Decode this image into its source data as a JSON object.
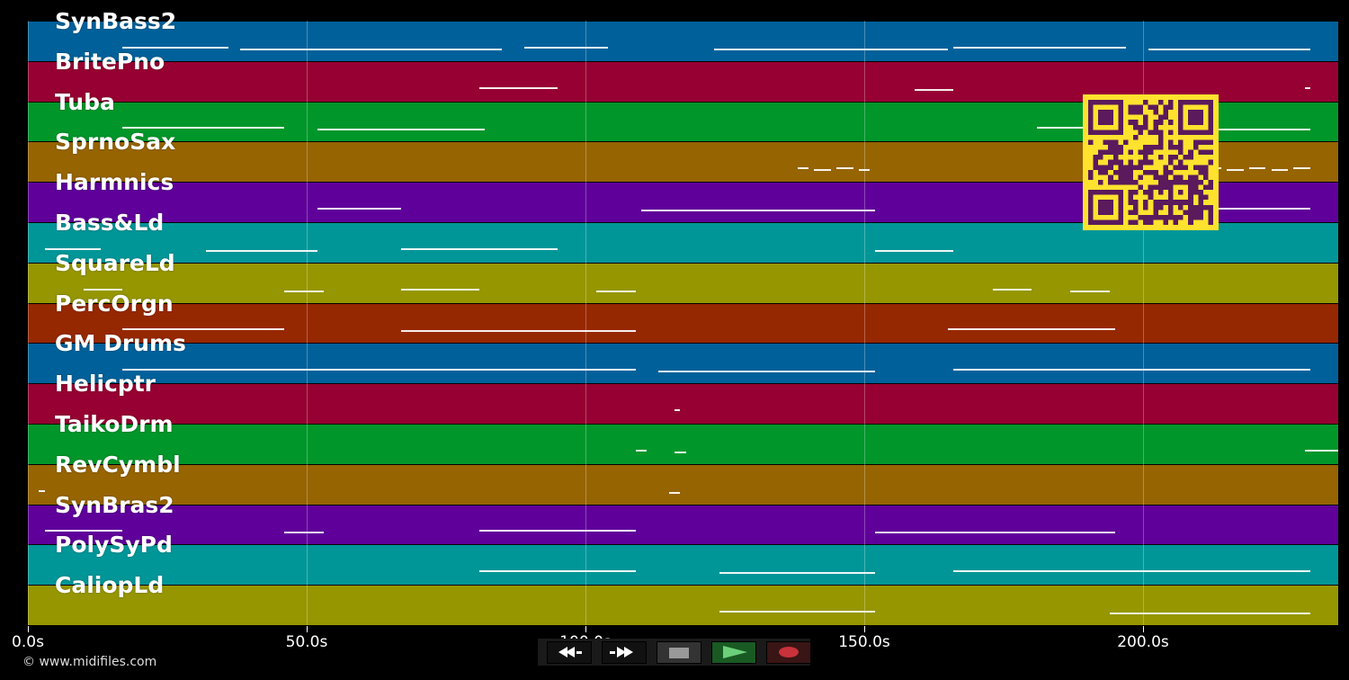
{
  "player": {
    "copyright": "© www.midifiles.com",
    "controls": {
      "rewind_icon": "rewind-icon",
      "fast_forward_icon": "fast-forward-icon",
      "stop_icon": "stop-icon",
      "play_icon": "play-icon",
      "record_icon": "record-icon"
    },
    "timeline": {
      "duration_s": 235,
      "ticks": [
        {
          "value": 0,
          "label": "0.0s"
        },
        {
          "value": 50,
          "label": "50.0s"
        },
        {
          "value": 100,
          "label": "100.0s"
        },
        {
          "value": 150,
          "label": "150.0s"
        },
        {
          "value": 200,
          "label": "200.0s"
        }
      ]
    },
    "tracks": [
      {
        "name": "SynBass2",
        "color": "#00619a",
        "notes": [
          [
            17,
            36
          ],
          [
            38,
            85
          ],
          [
            89,
            104
          ],
          [
            123,
            165
          ],
          [
            166,
            197
          ],
          [
            201,
            230
          ]
        ]
      },
      {
        "name": "BritePno",
        "color": "#960032",
        "notes": [
          [
            81,
            95
          ],
          [
            159,
            166
          ],
          [
            229,
            230
          ]
        ]
      },
      {
        "name": "Tuba",
        "color": "#00962a",
        "notes": [
          [
            17,
            46
          ],
          [
            52,
            82
          ],
          [
            181,
            191
          ],
          [
            191,
            230
          ]
        ]
      },
      {
        "name": "SprnoSax",
        "color": "#966400",
        "notes": [
          [
            138,
            140
          ],
          [
            141,
            144
          ],
          [
            145,
            148
          ],
          [
            149,
            151
          ],
          [
            211,
            214
          ],
          [
            215,
            218
          ],
          [
            219,
            222
          ],
          [
            223,
            226
          ],
          [
            227,
            230
          ]
        ]
      },
      {
        "name": "Harmnics",
        "color": "#5f009a",
        "notes": [
          [
            52,
            67
          ],
          [
            110,
            152
          ],
          [
            209,
            230
          ]
        ]
      },
      {
        "name": "Bass&Ld",
        "color": "#009698",
        "notes": [
          [
            3,
            13
          ],
          [
            32,
            52
          ],
          [
            67,
            95
          ],
          [
            152,
            166
          ]
        ]
      },
      {
        "name": "SquareLd",
        "color": "#969600",
        "notes": [
          [
            10,
            17
          ],
          [
            46,
            53
          ],
          [
            67,
            81
          ],
          [
            102,
            109
          ],
          [
            173,
            180
          ],
          [
            187,
            194
          ]
        ]
      },
      {
        "name": "PercOrgn",
        "color": "#962800",
        "notes": [
          [
            17,
            46
          ],
          [
            67,
            109
          ],
          [
            165,
            195
          ]
        ]
      },
      {
        "name": "GM Drums",
        "color": "#00619a",
        "notes": [
          [
            17,
            109
          ],
          [
            113,
            152
          ],
          [
            166,
            230
          ]
        ]
      },
      {
        "name": "Helicptr",
        "color": "#960032",
        "notes": [
          [
            116,
            117
          ]
        ]
      },
      {
        "name": "TaikoDrm",
        "color": "#00962a",
        "notes": [
          [
            109,
            111
          ],
          [
            116,
            118
          ],
          [
            229,
            235
          ]
        ]
      },
      {
        "name": "RevCymbl",
        "color": "#966400",
        "notes": [
          [
            2,
            3
          ],
          [
            115,
            117
          ]
        ]
      },
      {
        "name": "SynBras2",
        "color": "#5f009a",
        "notes": [
          [
            3,
            17
          ],
          [
            46,
            53
          ],
          [
            81,
            109
          ],
          [
            152,
            195
          ]
        ]
      },
      {
        "name": "PolySyPd",
        "color": "#009698",
        "notes": [
          [
            81,
            109
          ],
          [
            124,
            152
          ],
          [
            166,
            230
          ]
        ]
      },
      {
        "name": "CaliopLd",
        "color": "#969600",
        "notes": [
          [
            124,
            152
          ],
          [
            194,
            230
          ]
        ]
      }
    ]
  },
  "qr_code": {
    "name": "qr-code",
    "fg": "#5a1a5c",
    "bg": "#ffe22e"
  }
}
